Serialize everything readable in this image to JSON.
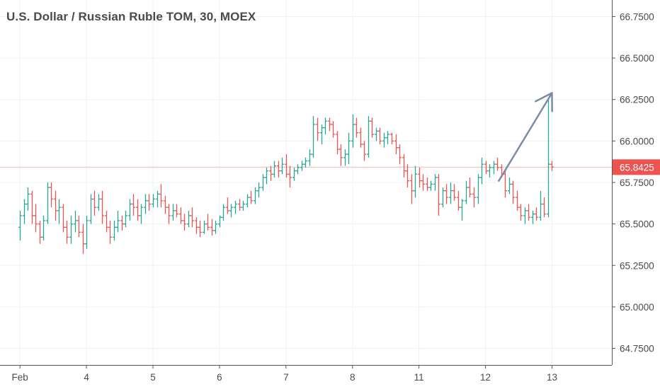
{
  "chart_data": {
    "type": "ohlc",
    "title": "U.S. Dollar / Russian Ruble TOM, 30, MOEX",
    "ylim": [
      64.65,
      66.85
    ],
    "y_ticks": [
      "66.7500",
      "66.5000",
      "66.2500",
      "66.0000",
      "65.7500",
      "65.5000",
      "65.2500",
      "65.0000",
      "64.7500"
    ],
    "y_tick_values": [
      66.75,
      66.5,
      66.25,
      66.0,
      65.75,
      65.5,
      65.25,
      65.0,
      64.75
    ],
    "x_ticks": [
      {
        "label": "Feb",
        "day": 0
      },
      {
        "label": "4",
        "day": 1
      },
      {
        "label": "5",
        "day": 2
      },
      {
        "label": "6",
        "day": 3
      },
      {
        "label": "7",
        "day": 4
      },
      {
        "label": "8",
        "day": 5
      },
      {
        "label": "11",
        "day": 6
      },
      {
        "label": "12",
        "day": 7
      },
      {
        "label": "13",
        "day": 8
      }
    ],
    "day_range": [
      -0.3,
      8.9
    ],
    "bars_per_day": 17,
    "last_price": {
      "label": "65.8425",
      "value": 65.8425
    },
    "colors": {
      "up": "#26a69a",
      "down": "#ef5350",
      "grid": "#eef0f3",
      "axis": "#555555",
      "last_line": "#f8b3b3",
      "last_bg": "#ef5350",
      "arrow": "#7a8aa8"
    },
    "series": [
      {
        "values": [
          [
            65.48,
            65.58,
            65.4,
            65.55
          ],
          [
            65.55,
            65.65,
            65.5,
            65.62
          ],
          [
            65.62,
            65.72,
            65.58,
            65.68
          ],
          [
            65.68,
            65.7,
            65.5,
            65.55
          ],
          [
            65.55,
            65.62,
            65.45,
            65.5
          ],
          [
            65.5,
            65.52,
            65.38,
            65.42
          ],
          [
            65.42,
            65.55,
            65.4,
            65.52
          ],
          [
            65.52,
            65.75,
            65.5,
            65.72
          ],
          [
            65.72,
            65.75,
            65.6,
            65.65
          ],
          [
            65.65,
            65.7,
            65.52,
            65.58
          ],
          [
            65.58,
            65.65,
            65.5,
            65.6
          ],
          [
            65.6,
            65.62,
            65.45,
            65.48
          ],
          [
            65.48,
            65.52,
            65.38,
            65.42
          ],
          [
            65.42,
            65.55,
            65.38,
            65.5
          ],
          [
            65.5,
            65.58,
            65.45,
            65.52
          ],
          [
            65.52,
            65.55,
            65.42,
            65.45
          ],
          [
            65.45,
            65.5,
            65.32,
            65.38
          ]
        ]
      },
      {
        "values": [
          [
            65.38,
            65.55,
            65.35,
            65.52
          ],
          [
            65.52,
            65.68,
            65.5,
            65.65
          ],
          [
            65.65,
            65.7,
            65.55,
            65.6
          ],
          [
            65.6,
            65.68,
            65.58,
            65.65
          ],
          [
            65.65,
            65.7,
            65.5,
            65.55
          ],
          [
            65.55,
            65.58,
            65.45,
            65.48
          ],
          [
            65.48,
            65.52,
            65.38,
            65.42
          ],
          [
            65.42,
            65.52,
            65.4,
            65.48
          ],
          [
            65.48,
            65.58,
            65.45,
            65.52
          ],
          [
            65.52,
            65.55,
            65.46,
            65.5
          ],
          [
            65.5,
            65.58,
            65.48,
            65.55
          ],
          [
            65.55,
            65.65,
            65.52,
            65.62
          ],
          [
            65.62,
            65.68,
            65.55,
            65.6
          ],
          [
            65.6,
            65.65,
            65.52,
            65.55
          ],
          [
            65.55,
            65.62,
            65.5,
            65.6
          ],
          [
            65.6,
            65.68,
            65.56,
            65.64
          ],
          [
            65.64,
            65.68,
            65.58,
            65.62
          ]
        ]
      },
      {
        "values": [
          [
            65.62,
            65.68,
            65.6,
            65.65
          ],
          [
            65.65,
            65.7,
            65.6,
            65.68
          ],
          [
            65.68,
            65.74,
            65.6,
            65.64
          ],
          [
            65.64,
            65.67,
            65.56,
            65.6
          ],
          [
            65.6,
            65.62,
            65.5,
            65.55
          ],
          [
            65.55,
            65.62,
            65.52,
            65.58
          ],
          [
            65.58,
            65.62,
            65.54,
            65.56
          ],
          [
            65.56,
            65.6,
            65.5,
            65.52
          ],
          [
            65.52,
            65.56,
            65.46,
            65.5
          ],
          [
            65.5,
            65.58,
            65.48,
            65.55
          ],
          [
            65.55,
            65.6,
            65.48,
            65.52
          ],
          [
            65.52,
            65.54,
            65.44,
            65.48
          ],
          [
            65.48,
            65.52,
            65.42,
            65.45
          ],
          [
            65.45,
            65.52,
            65.44,
            65.5
          ],
          [
            65.5,
            65.56,
            65.46,
            65.48
          ],
          [
            65.48,
            65.53,
            65.43,
            65.46
          ],
          [
            65.46,
            65.52,
            65.44,
            65.5
          ]
        ]
      },
      {
        "values": [
          [
            65.5,
            65.55,
            65.48,
            65.54
          ],
          [
            65.54,
            65.62,
            65.52,
            65.6
          ],
          [
            65.6,
            65.66,
            65.56,
            65.58
          ],
          [
            65.58,
            65.62,
            65.54,
            65.6
          ],
          [
            65.6,
            65.64,
            65.56,
            65.62
          ],
          [
            65.62,
            65.65,
            65.58,
            65.6
          ],
          [
            65.6,
            65.64,
            65.58,
            65.62
          ],
          [
            65.62,
            65.68,
            65.6,
            65.66
          ],
          [
            65.66,
            65.7,
            65.62,
            65.64
          ],
          [
            65.64,
            65.72,
            65.62,
            65.7
          ],
          [
            65.7,
            65.75,
            65.66,
            65.72
          ],
          [
            65.72,
            65.8,
            65.7,
            65.78
          ],
          [
            65.78,
            65.84,
            65.74,
            65.82
          ],
          [
            65.82,
            65.85,
            65.76,
            65.8
          ],
          [
            65.8,
            65.88,
            65.78,
            65.85
          ],
          [
            65.85,
            65.88,
            65.78,
            65.82
          ],
          [
            65.82,
            65.9,
            65.8,
            65.86
          ]
        ]
      },
      {
        "values": [
          [
            65.86,
            65.92,
            65.78,
            65.8
          ],
          [
            65.8,
            65.85,
            65.72,
            65.78
          ],
          [
            65.78,
            65.84,
            65.76,
            65.82
          ],
          [
            65.82,
            65.86,
            65.8,
            65.84
          ],
          [
            65.84,
            65.88,
            65.82,
            65.86
          ],
          [
            65.86,
            65.9,
            65.84,
            65.88
          ],
          [
            65.88,
            65.95,
            65.85,
            65.92
          ],
          [
            65.92,
            66.15,
            65.9,
            66.1
          ],
          [
            66.1,
            66.14,
            66.0,
            66.05
          ],
          [
            66.05,
            66.1,
            65.98,
            66.08
          ],
          [
            66.08,
            66.14,
            66.04,
            66.12
          ],
          [
            66.12,
            66.14,
            66.06,
            66.1
          ],
          [
            66.1,
            66.12,
            66.02,
            66.04
          ],
          [
            66.04,
            66.06,
            65.92,
            65.95
          ],
          [
            65.95,
            65.98,
            65.85,
            65.9
          ],
          [
            65.9,
            65.95,
            65.85,
            65.92
          ],
          [
            65.92,
            66.05,
            65.86,
            66.0
          ]
        ]
      },
      {
        "values": [
          [
            66.0,
            66.16,
            65.96,
            66.1
          ],
          [
            66.1,
            66.14,
            66.02,
            66.05
          ],
          [
            66.05,
            66.08,
            65.96,
            65.98
          ],
          [
            65.98,
            66.0,
            65.88,
            65.92
          ],
          [
            65.92,
            66.15,
            65.9,
            66.12
          ],
          [
            66.12,
            66.14,
            66.02,
            66.04
          ],
          [
            66.04,
            66.08,
            66.0,
            66.06
          ],
          [
            66.06,
            66.08,
            65.98,
            66.0
          ],
          [
            66.0,
            66.05,
            65.96,
            66.02
          ],
          [
            66.02,
            66.06,
            65.98,
            66.04
          ],
          [
            66.04,
            66.05,
            65.98,
            66.0
          ],
          [
            66.0,
            66.04,
            65.92,
            65.96
          ],
          [
            65.96,
            65.98,
            65.86,
            65.9
          ],
          [
            65.9,
            65.92,
            65.78,
            65.82
          ],
          [
            65.82,
            65.86,
            65.72,
            65.76
          ],
          [
            65.76,
            65.8,
            65.62,
            65.7
          ],
          [
            65.7,
            65.85,
            65.66,
            65.8
          ]
        ]
      },
      {
        "values": [
          [
            65.8,
            65.84,
            65.72,
            65.76
          ],
          [
            65.76,
            65.8,
            65.7,
            65.74
          ],
          [
            65.74,
            65.78,
            65.7,
            65.72
          ],
          [
            65.72,
            65.76,
            65.7,
            65.74
          ],
          [
            65.74,
            65.8,
            65.7,
            65.78
          ],
          [
            65.78,
            65.8,
            65.55,
            65.62
          ],
          [
            65.62,
            65.72,
            65.6,
            65.7
          ],
          [
            65.7,
            65.74,
            65.62,
            65.66
          ],
          [
            65.66,
            65.75,
            65.62,
            65.7
          ],
          [
            65.7,
            65.74,
            65.64,
            65.66
          ],
          [
            65.66,
            65.7,
            65.58,
            65.6
          ],
          [
            65.6,
            65.65,
            65.52,
            65.64
          ],
          [
            65.64,
            65.76,
            65.62,
            65.72
          ],
          [
            65.72,
            65.78,
            65.66,
            65.68
          ],
          [
            65.68,
            65.72,
            65.6,
            65.66
          ],
          [
            65.66,
            65.8,
            65.62,
            65.78
          ],
          [
            65.78,
            65.9,
            65.74,
            65.86
          ]
        ]
      },
      {
        "values": [
          [
            65.86,
            65.88,
            65.8,
            65.82
          ],
          [
            65.82,
            65.86,
            65.78,
            65.84
          ],
          [
            65.84,
            65.88,
            65.8,
            65.86
          ],
          [
            65.86,
            65.9,
            65.82,
            65.84
          ],
          [
            65.84,
            65.86,
            65.78,
            65.8
          ],
          [
            65.8,
            65.82,
            65.66,
            65.7
          ],
          [
            65.7,
            65.78,
            65.68,
            65.74
          ],
          [
            65.74,
            65.76,
            65.62,
            65.66
          ],
          [
            65.66,
            65.7,
            65.58,
            65.6
          ],
          [
            65.6,
            65.62,
            65.52,
            65.55
          ],
          [
            65.55,
            65.6,
            65.5,
            65.58
          ],
          [
            65.58,
            65.62,
            65.52,
            65.54
          ],
          [
            65.54,
            65.58,
            65.5,
            65.56
          ],
          [
            65.56,
            65.6,
            65.52,
            65.54
          ],
          [
            65.54,
            65.7,
            65.52,
            65.62
          ],
          [
            65.62,
            65.66,
            65.54,
            65.56
          ],
          [
            65.56,
            66.26,
            65.54,
            65.86
          ]
        ]
      },
      {
        "values": [
          [
            65.86,
            65.88,
            65.82,
            65.8425
          ]
        ]
      }
    ],
    "annotations": [
      {
        "type": "arrow",
        "from": {
          "day": 7.2,
          "y": 65.76
        },
        "to": {
          "day": 8.0,
          "y": 66.29
        }
      }
    ]
  }
}
